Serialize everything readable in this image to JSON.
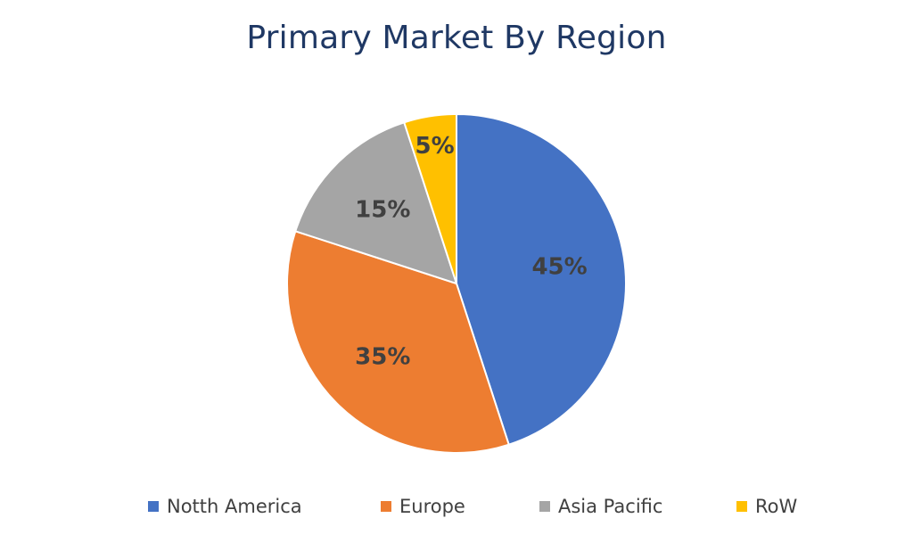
{
  "chart_data": {
    "type": "pie",
    "title": "Primary Market By Region",
    "categories": [
      "Notth America",
      "Europe",
      "Asia Pacific",
      "RoW"
    ],
    "values": [
      45,
      35,
      15,
      5
    ],
    "data_labels": [
      "45%",
      "35%",
      "15%",
      "5%"
    ],
    "colors": [
      "#4472c4",
      "#ed7d31",
      "#a5a5a5",
      "#ffc000"
    ],
    "legend_position": "bottom",
    "start_angle": "12 o'clock",
    "direction": "clockwise"
  }
}
